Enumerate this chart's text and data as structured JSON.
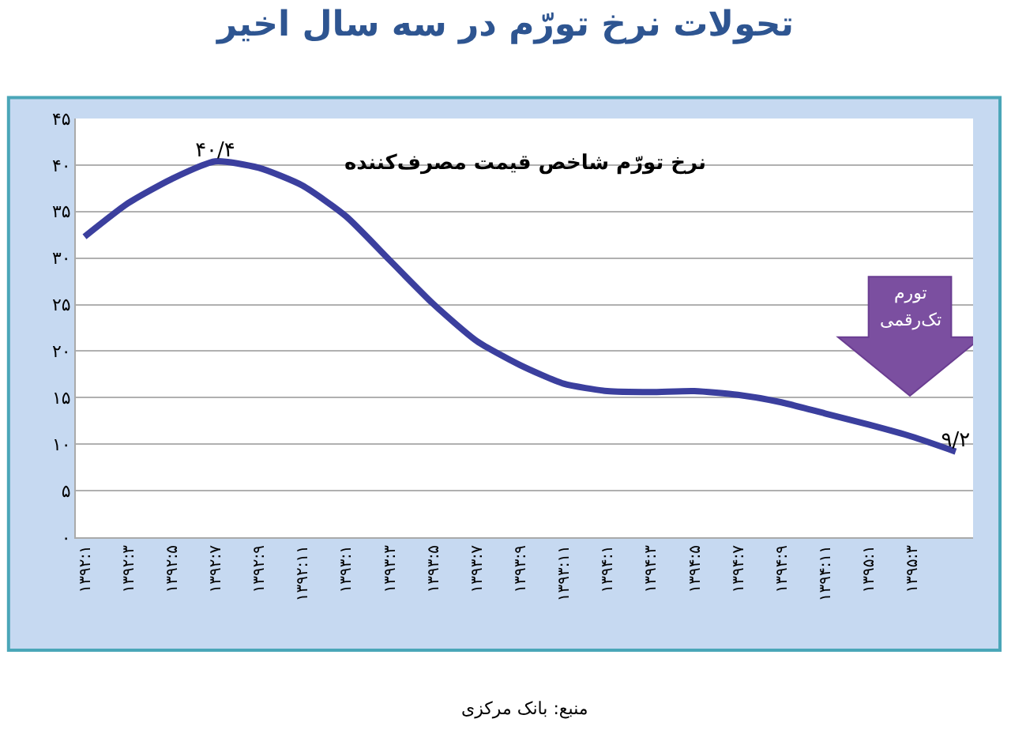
{
  "chart_data": {
    "type": "line",
    "title": "تحولات نرخ تورّم در سه سال اخیر",
    "subtitle": "نرخ تورّم شاخص قیمت مصرف‌کننده",
    "categories": [
      "۱۳۹۲:۱",
      "۱۳۹۲:۳",
      "۱۳۹۲:۵",
      "۱۳۹۲:۷",
      "۱۳۹۲:۹",
      "۱۳۹۲:۱۱",
      "۱۳۹۳:۱",
      "۱۳۹۳:۳",
      "۱۳۹۳:۵",
      "۱۳۹۳:۷",
      "۱۳۹۳:۹",
      "۱۳۹۳:۱۱",
      "۱۳۹۴:۱",
      "۱۳۹۴:۳",
      "۱۳۹۴:۵",
      "۱۳۹۴:۷",
      "۱۳۹۴:۹",
      "۱۳۹۴:۱۱",
      "۱۳۹۵:۱",
      "۱۳۹۵:۳",
      null
    ],
    "series": [
      {
        "color": "#3b3f9e",
        "values": [
          32.3,
          35.9,
          38.5,
          40.4,
          39.7,
          37.8,
          34.5,
          29.8,
          25.1,
          21.1,
          18.5,
          16.5,
          15.7,
          15.6,
          15.7,
          15.3,
          14.5,
          13.3,
          12.1,
          10.8,
          9.2
        ],
        "value_labels": [
          null,
          null,
          null,
          "۴۰/۴",
          null,
          null,
          null,
          null,
          null,
          null,
          null,
          null,
          null,
          null,
          null,
          null,
          null,
          null,
          null,
          null,
          "۹/۲"
        ]
      }
    ],
    "ylim": [
      0,
      45
    ],
    "yticks": [
      {
        "value": 0,
        "label": "۰"
      },
      {
        "value": 5,
        "label": "۵"
      },
      {
        "value": 10,
        "label": "۱۰"
      },
      {
        "value": 15,
        "label": "۱۵"
      },
      {
        "value": 20,
        "label": "۲۰"
      },
      {
        "value": 25,
        "label": "۲۵"
      },
      {
        "value": 30,
        "label": "۳۰"
      },
      {
        "value": 35,
        "label": "۳۵"
      },
      {
        "value": 40,
        "label": "۴۰"
      },
      {
        "value": 45,
        "label": "۴۵"
      }
    ],
    "grid": "y",
    "marker": "none",
    "line_style": "solid",
    "annotations": [
      "تورم",
      "تک‌رقمی",
      "منبع: بانک مرکزی"
    ]
  }
}
